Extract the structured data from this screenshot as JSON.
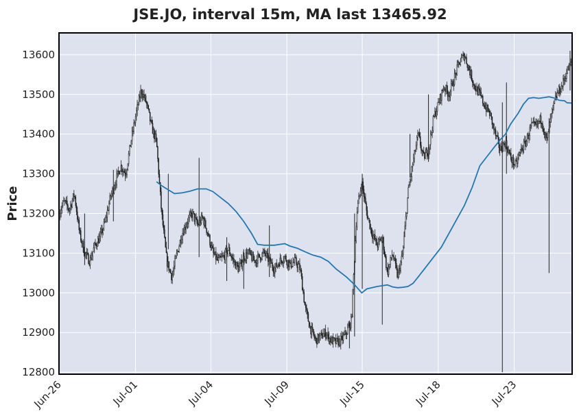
{
  "chart_data": {
    "type": "candlestick",
    "title": "JSE.JO, interval 15m, MA last 13465.92",
    "xlabel": "",
    "ylabel": "Price",
    "ylim": [
      12795,
      13655
    ],
    "yticks": [
      12800,
      12900,
      13000,
      13100,
      13200,
      13300,
      13400,
      13500,
      13600
    ],
    "xlim": [
      0,
      100
    ],
    "xticks": [
      {
        "label": "Jun-26",
        "pos": 0
      },
      {
        "label": "Jul-01",
        "pos": 14.9
      },
      {
        "label": "Jul-04",
        "pos": 29.6
      },
      {
        "label": "Jul-09",
        "pos": 44.4
      },
      {
        "label": "Jul-15",
        "pos": 59.1
      },
      {
        "label": "Jul-18",
        "pos": 73.9
      },
      {
        "label": "Jul-23",
        "pos": 88.7
      }
    ],
    "grid": true,
    "colors": {
      "plot_bg": "#dde2ee",
      "grid": "#ffffff",
      "candle": "#222222",
      "ma": "#1f77b4",
      "frame": "#000000"
    },
    "price_path": [
      [
        0,
        13200
      ],
      [
        1,
        13230
      ],
      [
        2,
        13210
      ],
      [
        3,
        13250
      ],
      [
        4,
        13150
      ],
      [
        5,
        13100
      ],
      [
        6,
        13080
      ],
      [
        7,
        13120
      ],
      [
        8,
        13140
      ],
      [
        9,
        13180
      ],
      [
        10,
        13240
      ],
      [
        11,
        13280
      ],
      [
        12,
        13320
      ],
      [
        13,
        13300
      ],
      [
        14,
        13380
      ],
      [
        15,
        13450
      ],
      [
        16,
        13510
      ],
      [
        17,
        13480
      ],
      [
        18,
        13420
      ],
      [
        19,
        13380
      ],
      [
        20,
        13200
      ],
      [
        21,
        13080
      ],
      [
        22,
        13040
      ],
      [
        23,
        13100
      ],
      [
        24,
        13150
      ],
      [
        25,
        13180
      ],
      [
        26,
        13200
      ],
      [
        27,
        13170
      ],
      [
        28,
        13190
      ],
      [
        29,
        13150
      ],
      [
        30,
        13100
      ],
      [
        31,
        13080
      ],
      [
        32,
        13090
      ],
      [
        33,
        13110
      ],
      [
        34,
        13080
      ],
      [
        35,
        13060
      ],
      [
        36,
        13090
      ],
      [
        37,
        13100
      ],
      [
        38,
        13080
      ],
      [
        39,
        13090
      ],
      [
        40,
        13100
      ],
      [
        41,
        13080
      ],
      [
        42,
        13060
      ],
      [
        43,
        13080
      ],
      [
        44,
        13090
      ],
      [
        45,
        13070
      ],
      [
        46,
        13080
      ],
      [
        47,
        13060
      ],
      [
        48,
        12960
      ],
      [
        49,
        12910
      ],
      [
        50,
        12880
      ],
      [
        51,
        12890
      ],
      [
        52,
        12900
      ],
      [
        53,
        12880
      ],
      [
        54,
        12875
      ],
      [
        55,
        12880
      ],
      [
        56,
        12900
      ],
      [
        57,
        12930
      ],
      [
        58,
        13200
      ],
      [
        59,
        13280
      ],
      [
        60,
        13200
      ],
      [
        61,
        13150
      ],
      [
        62,
        13120
      ],
      [
        63,
        13140
      ],
      [
        64,
        13050
      ],
      [
        65,
        13100
      ],
      [
        66,
        13040
      ],
      [
        67,
        13100
      ],
      [
        68,
        13250
      ],
      [
        69,
        13330
      ],
      [
        70,
        13400
      ],
      [
        71,
        13340
      ],
      [
        72,
        13360
      ],
      [
        73,
        13440
      ],
      [
        74,
        13480
      ],
      [
        75,
        13520
      ],
      [
        76,
        13500
      ],
      [
        77,
        13540
      ],
      [
        78,
        13580
      ],
      [
        79,
        13600
      ],
      [
        80,
        13560
      ],
      [
        81,
        13520
      ],
      [
        82,
        13500
      ],
      [
        83,
        13470
      ],
      [
        84,
        13450
      ],
      [
        85,
        13400
      ],
      [
        86,
        13360
      ],
      [
        87,
        13380
      ],
      [
        88,
        13340
      ],
      [
        89,
        13320
      ],
      [
        90,
        13360
      ],
      [
        91,
        13380
      ],
      [
        92,
        13420
      ],
      [
        93,
        13420
      ],
      [
        94,
        13440
      ],
      [
        95,
        13380
      ],
      [
        96,
        13450
      ],
      [
        97,
        13500
      ],
      [
        98,
        13520
      ],
      [
        99,
        13560
      ],
      [
        100,
        13580
      ]
    ],
    "spikes": [
      {
        "x": 5,
        "low": 13070,
        "high": 13200
      },
      {
        "x": 10.6,
        "low": 13180,
        "high": 13310
      },
      {
        "x": 21.3,
        "low": 13110,
        "high": 13300
      },
      {
        "x": 27.3,
        "low": 13090,
        "high": 13340
      },
      {
        "x": 32.7,
        "low": 13030,
        "high": 13140
      },
      {
        "x": 36.0,
        "low": 13010,
        "high": 13110
      },
      {
        "x": 41.0,
        "low": 13040,
        "high": 13170
      },
      {
        "x": 56.6,
        "low": 12860,
        "high": 12930
      },
      {
        "x": 57.6,
        "low": 12890,
        "high": 13200
      },
      {
        "x": 59.1,
        "low": 13010,
        "high": 13300
      },
      {
        "x": 63.0,
        "low": 12920,
        "high": 13130
      },
      {
        "x": 68.4,
        "low": 13290,
        "high": 13400
      },
      {
        "x": 72.0,
        "low": 13330,
        "high": 13500
      },
      {
        "x": 86.4,
        "low": 12800,
        "high": 13480
      },
      {
        "x": 87.2,
        "low": 13300,
        "high": 13530
      },
      {
        "x": 95.5,
        "low": 13050,
        "high": 13440
      },
      {
        "x": 99.6,
        "low": 13510,
        "high": 13610
      }
    ],
    "ma": [
      [
        19.0,
        13280
      ],
      [
        20.0,
        13270
      ],
      [
        21.0,
        13262
      ],
      [
        22.5,
        13250
      ],
      [
        24.0,
        13252
      ],
      [
        25.5,
        13256
      ],
      [
        27.0,
        13262
      ],
      [
        28.7,
        13262
      ],
      [
        30.0,
        13255
      ],
      [
        31.5,
        13240
      ],
      [
        33.0,
        13225
      ],
      [
        34.5,
        13205
      ],
      [
        36.0,
        13180
      ],
      [
        37.5,
        13150
      ],
      [
        38.7,
        13122
      ],
      [
        40.0,
        13120
      ],
      [
        41.0,
        13120
      ],
      [
        42.0,
        13120
      ],
      [
        43.0,
        13122
      ],
      [
        44.0,
        13124
      ],
      [
        45.0,
        13118
      ],
      [
        46.5,
        13112
      ],
      [
        48.0,
        13103
      ],
      [
        49.5,
        13095
      ],
      [
        51.0,
        13090
      ],
      [
        52.5,
        13079
      ],
      [
        54.0,
        13060
      ],
      [
        56.0,
        13040
      ],
      [
        57.5,
        13022
      ],
      [
        59.0,
        13000
      ],
      [
        60.0,
        13010
      ],
      [
        62.0,
        13016
      ],
      [
        63.0,
        13018
      ],
      [
        64.0,
        13020
      ],
      [
        65.0,
        13015
      ],
      [
        66.0,
        13013
      ],
      [
        67.0,
        13014
      ],
      [
        68.0,
        13016
      ],
      [
        69.0,
        13024
      ],
      [
        70.0,
        13040
      ],
      [
        71.5,
        13065
      ],
      [
        73.0,
        13090
      ],
      [
        74.5,
        13115
      ],
      [
        76.0,
        13150
      ],
      [
        77.5,
        13185
      ],
      [
        79.0,
        13220
      ],
      [
        80.5,
        13265
      ],
      [
        82.0,
        13320
      ],
      [
        83.5,
        13345
      ],
      [
        85.0,
        13370
      ],
      [
        86.0,
        13386
      ],
      [
        87.0,
        13400
      ],
      [
        88.0,
        13425
      ],
      [
        89.5,
        13453
      ],
      [
        90.5,
        13475
      ],
      [
        91.5,
        13490
      ],
      [
        92.5,
        13492
      ],
      [
        93.5,
        13490
      ],
      [
        94.5,
        13492
      ],
      [
        95.5,
        13494
      ],
      [
        96.5,
        13491
      ],
      [
        97.5,
        13485
      ],
      [
        98.5,
        13484
      ],
      [
        99.0,
        13479
      ],
      [
        100.0,
        13478
      ]
    ]
  }
}
